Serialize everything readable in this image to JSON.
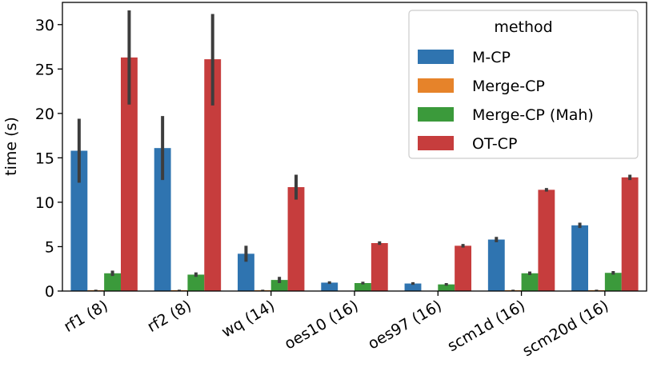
{
  "chart_data": {
    "type": "bar",
    "title": "",
    "xlabel": "",
    "ylabel": "time (s)",
    "ylim": [
      0,
      32.5
    ],
    "yticks": [
      0,
      5,
      10,
      15,
      20,
      25,
      30
    ],
    "grid": false,
    "legend": {
      "title": "method",
      "placement": "top-right"
    },
    "categories": [
      "rf1 (8)",
      "rf2 (8)",
      "wq (14)",
      "oes10 (16)",
      "oes97 (16)",
      "scm1d (16)",
      "scm20d (16)"
    ],
    "series": [
      {
        "name": "M-CP",
        "color": "#2f74b0",
        "values": [
          15.8,
          16.1,
          4.2,
          0.95,
          0.85,
          5.8,
          7.4
        ],
        "ci": [
          [
            12.2,
            19.4
          ],
          [
            12.5,
            19.7
          ],
          [
            3.3,
            5.1
          ],
          [
            0.8,
            1.1
          ],
          [
            0.7,
            1.0
          ],
          [
            5.5,
            6.1
          ],
          [
            7.1,
            7.7
          ]
        ]
      },
      {
        "name": "Merge-CP",
        "color": "#e6832a",
        "values": [
          0.1,
          0.1,
          0.1,
          0.0,
          0.0,
          0.1,
          0.1
        ],
        "ci": [
          [
            0.05,
            0.15
          ],
          [
            0.05,
            0.15
          ],
          [
            0.05,
            0.15
          ],
          [
            0.0,
            0.0
          ],
          [
            0.0,
            0.0
          ],
          [
            0.05,
            0.15
          ],
          [
            0.05,
            0.15
          ]
        ]
      },
      {
        "name": "Merge-CP (Mah)",
        "color": "#3b9a3b",
        "values": [
          2.0,
          1.85,
          1.25,
          0.9,
          0.75,
          2.0,
          2.05
        ],
        "ci": [
          [
            1.7,
            2.3
          ],
          [
            1.6,
            2.1
          ],
          [
            0.9,
            1.6
          ],
          [
            0.75,
            1.05
          ],
          [
            0.6,
            0.9
          ],
          [
            1.8,
            2.2
          ],
          [
            1.85,
            2.25
          ]
        ]
      },
      {
        "name": "OT-CP",
        "color": "#c63d3d",
        "values": [
          26.3,
          26.1,
          11.7,
          5.4,
          5.1,
          11.4,
          12.8
        ],
        "ci": [
          [
            21.0,
            31.6
          ],
          [
            20.9,
            31.2
          ],
          [
            10.3,
            13.1
          ],
          [
            5.2,
            5.6
          ],
          [
            4.9,
            5.3
          ],
          [
            11.2,
            11.6
          ],
          [
            12.5,
            13.1
          ]
        ]
      }
    ]
  }
}
